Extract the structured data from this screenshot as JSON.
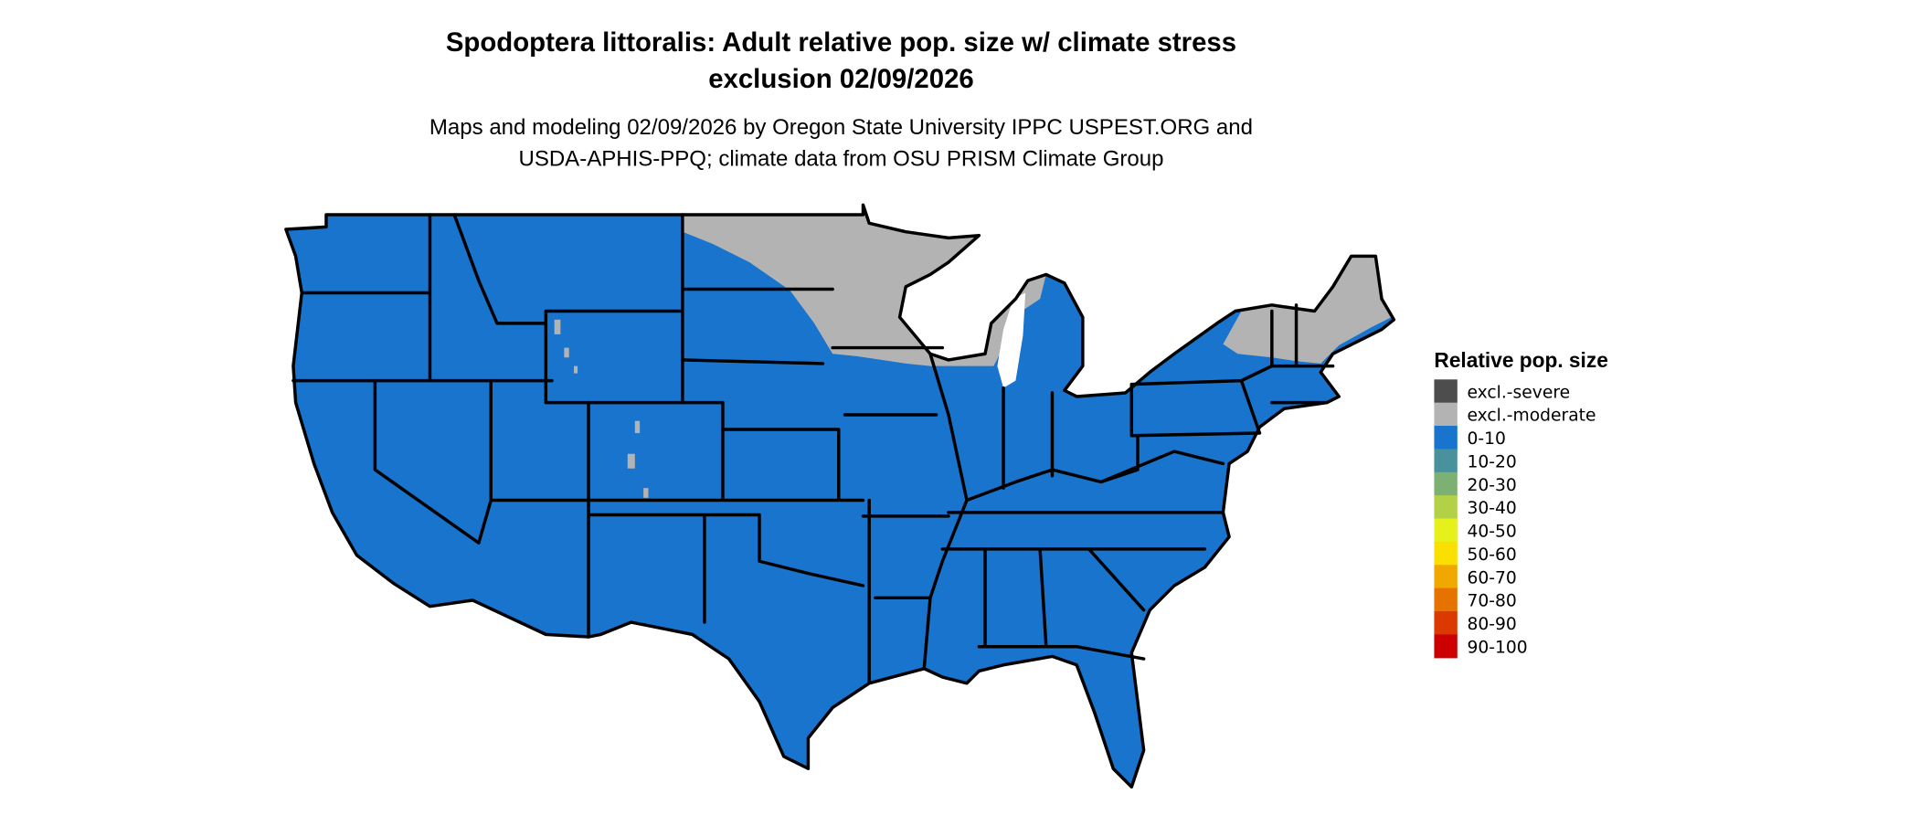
{
  "title_lines": [
    "Spodoptera littoralis: Adult relative pop. size w/ climate stress",
    "exclusion 02/09/2026"
  ],
  "subtitle_lines": [
    "Maps and modeling 02/09/2026 by Oregon State University IPPC USPEST.ORG and",
    "USDA-APHIS-PPQ; climate data from OSU PRISM Climate Group"
  ],
  "map": {
    "region": "Contiguous United States",
    "dominant_class": "0-10",
    "excluded_moderate_areas": [
      "North Dakota",
      "Minnesota",
      "Wisconsin",
      "northern New England",
      "scattered Rocky Mountain highlands"
    ]
  },
  "legend": {
    "title": "Relative pop. size",
    "items": [
      {
        "label": "excl.-severe",
        "color": "#4d4d4d"
      },
      {
        "label": "excl.-moderate",
        "color": "#b3b3b3"
      },
      {
        "label": "0-10",
        "color": "#1874cd"
      },
      {
        "label": "10-20",
        "color": "#4a919e"
      },
      {
        "label": "20-30",
        "color": "#7db073"
      },
      {
        "label": "30-40",
        "color": "#b3d147"
      },
      {
        "label": "40-50",
        "color": "#e6f01a"
      },
      {
        "label": "50-60",
        "color": "#f9e000"
      },
      {
        "label": "60-70",
        "color": "#f0a800"
      },
      {
        "label": "70-80",
        "color": "#e67300"
      },
      {
        "label": "80-90",
        "color": "#db3900"
      },
      {
        "label": "90-100",
        "color": "#cc0000"
      }
    ]
  }
}
